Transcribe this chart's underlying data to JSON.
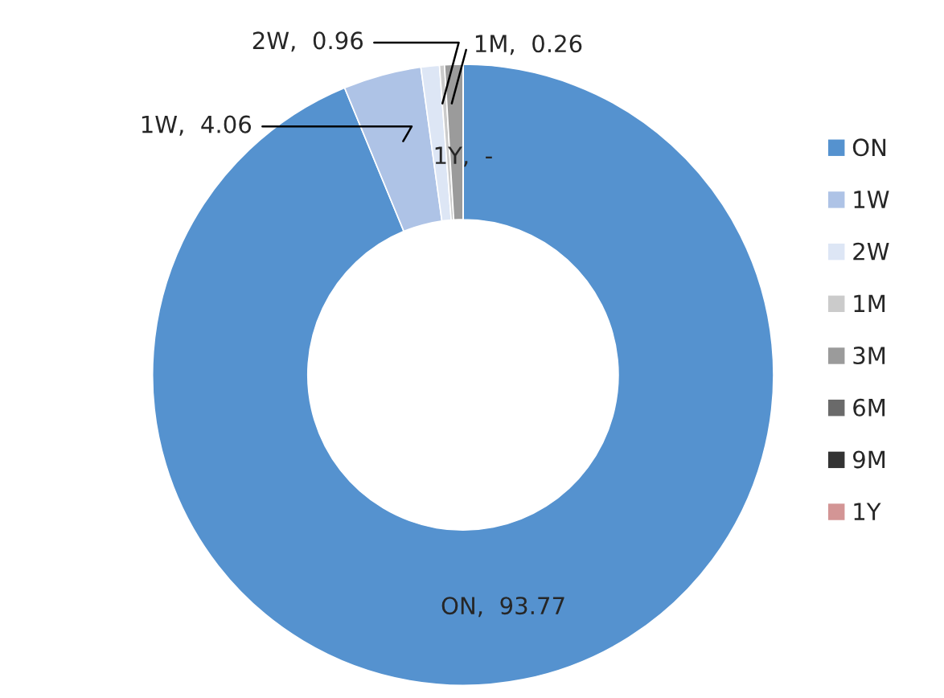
{
  "chart_data": {
    "type": "donut",
    "categories": [
      "ON",
      "1W",
      "2W",
      "1M",
      "3M",
      "6M",
      "9M",
      "1Y"
    ],
    "values": [
      93.77,
      4.06,
      0.96,
      0.26,
      0.95,
      0,
      0,
      null
    ],
    "colors": [
      "#5592cf",
      "#aec3e6",
      "#dde6f5",
      "#cbcbcb",
      "#9b9b9b",
      "#6a6a6a",
      "#333333",
      "#d39595"
    ],
    "value_labels": [
      "ON,  93.77",
      "1W,  4.06",
      "2W,  0.96",
      "1M,  0.26",
      null,
      null,
      null,
      "1Y,  -"
    ],
    "legend": "right"
  }
}
